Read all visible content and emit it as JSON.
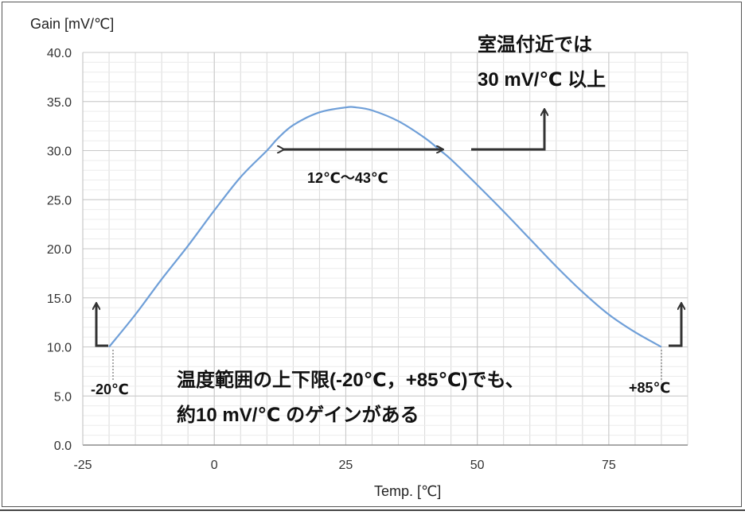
{
  "chart_data": {
    "type": "line",
    "ylabel": "Gain [mV/℃]",
    "xlabel": "Temp. [℃]",
    "xlim": [
      -25,
      90
    ],
    "ylim": [
      0,
      40
    ],
    "x_ticks": [
      -25,
      0,
      25,
      50,
      75
    ],
    "x_tick_labels": [
      "-25",
      "0",
      "25",
      "50",
      "75"
    ],
    "y_ticks": [
      0,
      5,
      10,
      15,
      20,
      25,
      30,
      35,
      40
    ],
    "y_tick_labels": [
      "0.0",
      "5.0",
      "10.0",
      "15.0",
      "20.0",
      "25.0",
      "30.0",
      "35.0",
      "40.0"
    ],
    "grid": true,
    "line_color": "#6f9fd8",
    "series": [
      {
        "x": [
          -20,
          -15,
          -10,
          -5,
          0,
          5,
          10,
          12,
          15,
          20,
          25,
          27,
          30,
          35,
          40,
          43,
          45,
          50,
          55,
          60,
          65,
          70,
          75,
          80,
          85
        ],
        "y": [
          10.0,
          13.3,
          16.9,
          20.3,
          23.9,
          27.3,
          30.0,
          31.2,
          32.6,
          33.9,
          34.4,
          34.4,
          34.1,
          33.0,
          31.3,
          30.0,
          29.1,
          26.5,
          23.8,
          21.0,
          18.2,
          15.6,
          13.3,
          11.5,
          10.0
        ]
      }
    ],
    "annotations": {
      "room_temp_line1": "室温付近では",
      "room_temp_line2": "30 mV/℃ 以上",
      "range_label": "12℃～43℃",
      "bottom_line1": "温度範囲の上下限(-20℃，+85℃)でも、",
      "bottom_line2": "約10 mV/℃ のゲインがある",
      "left_endpoint": "-20℃",
      "right_endpoint": "+85℃"
    }
  }
}
